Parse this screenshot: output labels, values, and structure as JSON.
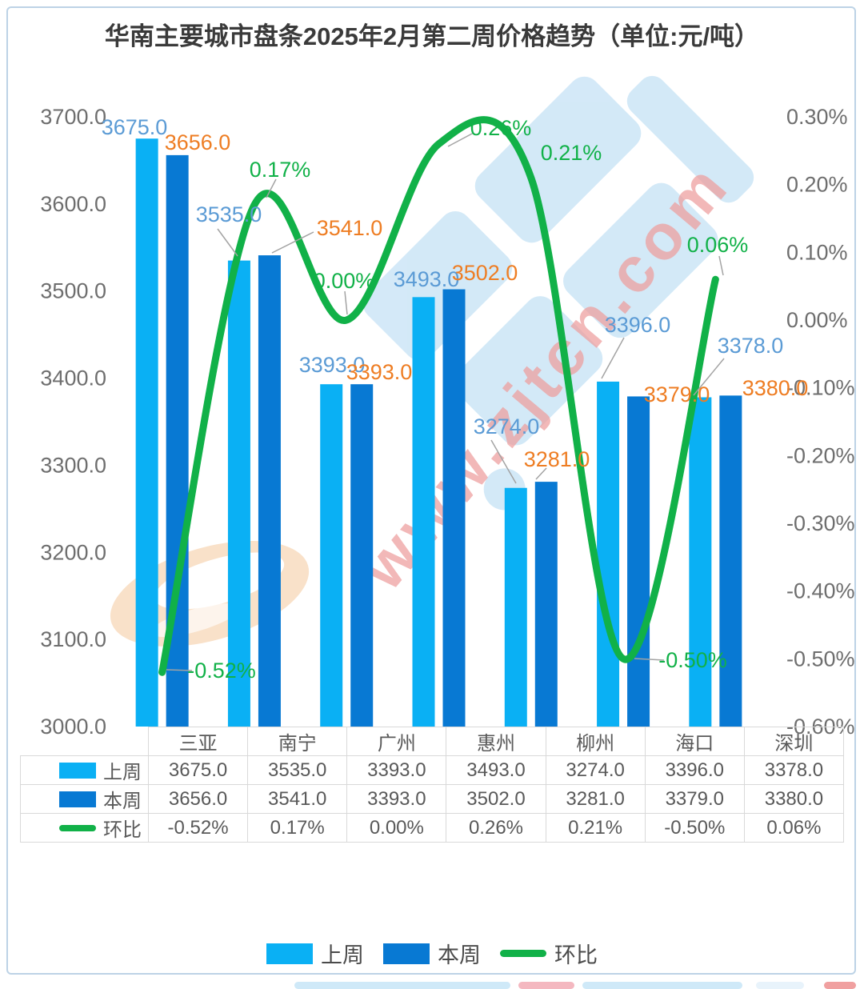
{
  "chart_data": {
    "type": "bar",
    "title": "华南主要城市盘条2025年2月第二周价格趋势（单位:元/吨）",
    "unit": "元/吨",
    "categories": [
      "三亚",
      "南宁",
      "广州",
      "惠州",
      "柳州",
      "海口",
      "深圳"
    ],
    "series": [
      {
        "name": "上周",
        "type": "bar",
        "color": "#0ab0f4",
        "label_color": "#5b9bd5",
        "values": [
          3675.0,
          3535.0,
          3393.0,
          3493.0,
          3274.0,
          3396.0,
          3378.0
        ],
        "labels": [
          "3675.0",
          "3535.0",
          "3393.0",
          "3493.0",
          "3274.0",
          "3396.0",
          "3378.0"
        ]
      },
      {
        "name": "本周",
        "type": "bar",
        "color": "#0879d3",
        "label_color": "#ee7d23",
        "values": [
          3656.0,
          3541.0,
          3393.0,
          3502.0,
          3281.0,
          3379.0,
          3380.0
        ],
        "labels": [
          "3656.0",
          "3541.0",
          "3393.0",
          "3502.0",
          "3281.0",
          "3379.0",
          "3380.0"
        ]
      },
      {
        "name": "环比",
        "type": "line",
        "color": "#11b148",
        "label_color": "#11b148",
        "values": [
          -0.52,
          0.17,
          0.0,
          0.26,
          0.21,
          -0.5,
          0.06
        ],
        "labels": [
          "-0.52%",
          "0.17%",
          "0.00%",
          "0.26%",
          "0.21%",
          "-0.50%",
          "0.06%"
        ]
      }
    ],
    "left_axis": {
      "min": 3000,
      "max": 3700,
      "step": 100,
      "labels": [
        "3700.0",
        "3600.0",
        "3500.0",
        "3400.0",
        "3300.0",
        "3200.0",
        "3100.0",
        "3000.0"
      ]
    },
    "right_axis": {
      "min": -0.6,
      "max": 0.3,
      "step": 0.1,
      "labels": [
        "0.30%",
        "0.20%",
        "0.10%",
        "0.00%",
        "-0.10%",
        "-0.20%",
        "-0.30%",
        "-0.40%",
        "-0.50%",
        "-0.60%"
      ]
    },
    "grid": false,
    "legend_position": "bottom"
  },
  "table": {
    "city_header": [
      "三亚",
      "南宁",
      "广州",
      "惠州",
      "柳州",
      "海口",
      "深圳"
    ],
    "rows": [
      {
        "name": "上周",
        "swatch": "bar-light",
        "cells": [
          "3675.0",
          "3535.0",
          "3393.0",
          "3493.0",
          "3274.0",
          "3396.0",
          "3378.0"
        ]
      },
      {
        "name": "本周",
        "swatch": "bar-dark",
        "cells": [
          "3656.0",
          "3541.0",
          "3393.0",
          "3502.0",
          "3281.0",
          "3379.0",
          "3380.0"
        ]
      },
      {
        "name": "环比",
        "swatch": "line-green",
        "cells": [
          "-0.52%",
          "0.17%",
          "0.00%",
          "0.26%",
          "0.21%",
          "-0.50%",
          "0.06%"
        ]
      }
    ]
  },
  "legend": {
    "items": [
      {
        "label": "上周",
        "swatch": "bar-light"
      },
      {
        "label": "本周",
        "swatch": "bar-dark"
      },
      {
        "label": "环比",
        "swatch": "line-green"
      }
    ]
  },
  "watermark": {
    "text": "www.zjtcn.com"
  },
  "colors": {
    "bar_light": "#0ab0f4",
    "bar_dark": "#0879d3",
    "line_green": "#11b148",
    "label_blue": "#5b9bd5",
    "label_orange": "#ee7d23",
    "axis_text": "#6e6e6e",
    "leader_gray": "#a3a3a3",
    "table_border": "#d9d9d9",
    "card_border": "#bdd3e6",
    "watermark_blue": "#cfe7f7",
    "watermark_orange": "#f8dcc0",
    "watermark_pink": "#ee9d9d"
  }
}
